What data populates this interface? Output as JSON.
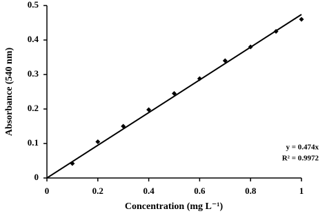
{
  "chart_data": {
    "type": "scatter",
    "x_label": "Concentration (mg L⁻¹)",
    "y_label": "Absorbance (540 nm)",
    "x": [
      0.1,
      0.2,
      0.3,
      0.4,
      0.5,
      0.6,
      0.7,
      0.8,
      0.9,
      1.0
    ],
    "values": [
      0.042,
      0.105,
      0.15,
      0.198,
      0.245,
      0.288,
      0.34,
      0.38,
      0.425,
      0.46
    ],
    "color": "#000000",
    "xlim": [
      0,
      1
    ],
    "ylim": [
      0,
      0.5
    ],
    "xticks": [
      0,
      0.2,
      0.4,
      0.6,
      0.8,
      1
    ],
    "yticks": [
      0,
      0.1,
      0.2,
      0.3,
      0.4,
      0.5
    ],
    "grid": false,
    "trendline": {
      "slope": 0.474,
      "label": "y = 0.474x",
      "r2_label": "R² = 0.9972"
    }
  }
}
